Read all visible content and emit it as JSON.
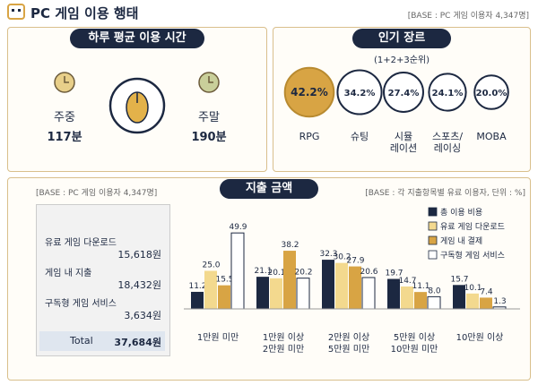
{
  "header": {
    "title": "PC 게임 이용 행태",
    "base": "[BASE : PC 게임 이용자 4,347명]"
  },
  "daily_time": {
    "title": "하루 평균 이용 시간",
    "weekday": {
      "label": "주중",
      "value": "117분"
    },
    "weekend": {
      "label": "주말",
      "value": "190분"
    }
  },
  "genres": {
    "title": "인기 장르",
    "note": "(1+2+3순위)",
    "categories": [
      "RPG",
      "슈팅",
      "시뮬\n레이션",
      "스포츠/\n레이싱",
      "MOBA"
    ],
    "values": [
      42.2,
      34.2,
      27.4,
      24.1,
      20.0
    ],
    "value_labels": [
      "42.2%",
      "34.2%",
      "27.4%",
      "24.1%",
      "20.0%"
    ]
  },
  "spending": {
    "base": "[BASE : PC 게임 이용자 4,347명]",
    "items": [
      {
        "label": "유료 게임 다운로드",
        "value": "15,618원"
      },
      {
        "label": "게임 내 지출",
        "value": "18,432원"
      },
      {
        "label": "구독형 게임 서비스",
        "value": "3,634원"
      }
    ],
    "total": {
      "label": "Total",
      "value": "37,684원"
    }
  },
  "chart_data": {
    "type": "bar",
    "title": "지출 금액",
    "subtitle": "[BASE : 각 지출항목별 유료 이용자, 단위 : %]",
    "categories": [
      "1만원 미만",
      "1만원 이상\n2만원 미만",
      "2만원 이상\n5만원 미만",
      "5만원 이상\n10만원 미만",
      "10만원 이상"
    ],
    "series": [
      {
        "name": "총 이용 비용",
        "color": "#1c2841",
        "values": [
          11.2,
          21.1,
          32.3,
          19.7,
          15.7
        ],
        "value_labels": [
          "11.2",
          "21.1",
          "32.3",
          "19.7",
          "15.7"
        ]
      },
      {
        "name": "유료 게임 다운로드",
        "color": "#f3d98e",
        "values": [
          25.0,
          20.1,
          30.2,
          14.7,
          10.1
        ],
        "value_labels": [
          "25.0",
          "20.1",
          "30.2",
          "14.7",
          "10.1"
        ]
      },
      {
        "name": "게임 내 결제",
        "color": "#d8a444",
        "values": [
          15.5,
          38.2,
          27.9,
          11.1,
          7.4
        ],
        "value_labels": [
          "15.5",
          "38.2",
          "27.9",
          "11.1",
          "7.4"
        ]
      },
      {
        "name": "구독형 게임 서비스",
        "color": "#ffffff",
        "values": [
          49.9,
          20.2,
          20.6,
          8.0,
          1.3
        ],
        "value_labels": [
          "49.9",
          "20.2",
          "20.6",
          "8.0",
          "1.3"
        ]
      }
    ]
  }
}
